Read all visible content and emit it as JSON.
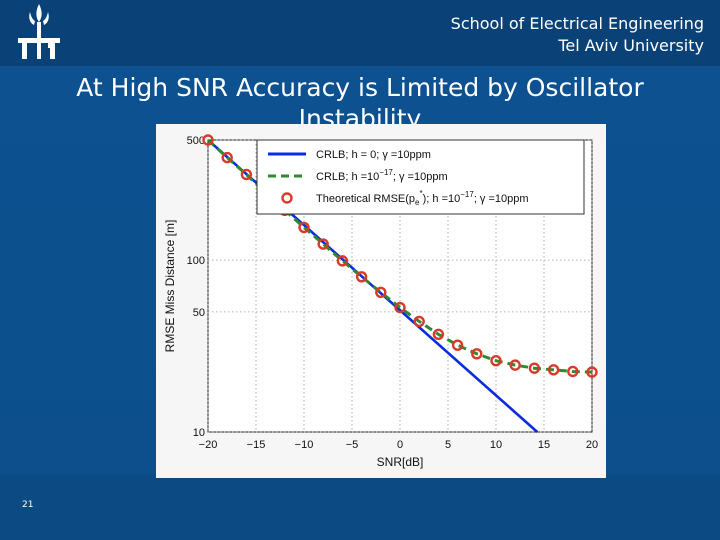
{
  "header": {
    "school_line1": "School of Electrical Engineering",
    "school_line2": "Tel Aviv University"
  },
  "slide": {
    "title_line1": "At High SNR Accuracy is Limited by Oscillator",
    "title_line2": "Instability",
    "page_number": "21"
  },
  "colors": {
    "background": "#0b4a82",
    "crlb_h0": "#0b2be0",
    "crlb_h": "#2f8a2f",
    "theoretical_markers": "#d83a2a"
  },
  "chart_data": {
    "type": "line",
    "xlabel": "SNR[dB]",
    "ylabel": "RMSE Miss Distance [m]",
    "xlim": [
      -20,
      20
    ],
    "ylim": [
      10,
      500
    ],
    "yscale": "log",
    "grid": true,
    "legend_position": "top-right",
    "x_ticks": [
      "−20",
      "−15",
      "−10",
      "−5",
      "0",
      "5",
      "10",
      "15",
      "20"
    ],
    "y_ticks": [
      "10",
      "50",
      "100",
      "500"
    ],
    "y_tick_values": [
      10,
      50,
      100,
      500
    ],
    "series": [
      {
        "name": "CRLB; h = 0; γ =10ppm",
        "legend_parts": {
          "base": "CRLB; h = 0; γ =10ppm"
        },
        "style": "solid",
        "x": [
          -20,
          14.3
        ],
        "y": [
          500,
          10
        ]
      },
      {
        "name": "CRLB; h =10^-17; γ =10ppm",
        "legend_parts": {
          "pre": "CRLB; h =10",
          "sup": "−17",
          "post": "; γ =10ppm"
        },
        "style": "dashed",
        "x": [
          -20,
          -18,
          -16,
          -14,
          -12,
          -10,
          -8,
          -6,
          -4,
          -2,
          0,
          2,
          4,
          6,
          8,
          10,
          12,
          14,
          16,
          18,
          20
        ],
        "y": [
          500,
          395,
          315,
          245,
          195,
          155,
          124,
          99,
          80,
          65,
          53,
          44,
          37,
          32,
          28.5,
          26,
          24.5,
          23.5,
          23,
          22.5,
          22.3
        ]
      },
      {
        "name": "Theoretical RMSE(p_e^*); h =10^-17; γ =10ppm",
        "legend_parts": {
          "pre": "Theoretical RMSE(p",
          "sub": "e",
          "sup_star": "*",
          "mid": "); h =10",
          "sup": "−17",
          "post": "; γ =10ppm"
        },
        "style": "markers",
        "x": [
          -20,
          -18,
          -16,
          -14,
          -12,
          -10,
          -8,
          -6,
          -4,
          -2,
          0,
          2,
          4,
          6,
          8,
          10,
          12,
          14,
          16,
          18,
          20
        ],
        "y": [
          500,
          395,
          315,
          245,
          195,
          155,
          124,
          99,
          80,
          65,
          53,
          44,
          37,
          32,
          28.5,
          26,
          24.5,
          23.5,
          23,
          22.5,
          22.3
        ]
      }
    ]
  }
}
